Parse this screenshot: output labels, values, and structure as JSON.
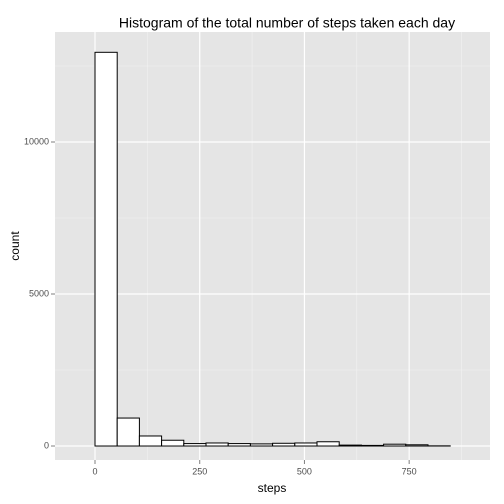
{
  "chart_data": {
    "type": "histogram",
    "title": "Histogram of the total number of steps taken each day",
    "x_label": "steps",
    "y_label": "count",
    "bins": [
      -53,
      0,
      53,
      106,
      159,
      212,
      265,
      318,
      371,
      424,
      477,
      530,
      583,
      636,
      689,
      742,
      795,
      848,
      901
    ],
    "values": [
      0,
      12950,
      920,
      330,
      190,
      80,
      100,
      80,
      70,
      90,
      100,
      140,
      30,
      20,
      60,
      40,
      5,
      0
    ],
    "color": "#ffffff",
    "edge_color": "#000000",
    "xlim": [
      -95.5,
      943
    ],
    "xticks": [
      0,
      250,
      500,
      750
    ],
    "ylim": [
      -460,
      13618
    ],
    "yticks": [
      0,
      5000,
      10000
    ],
    "grid": true
  }
}
